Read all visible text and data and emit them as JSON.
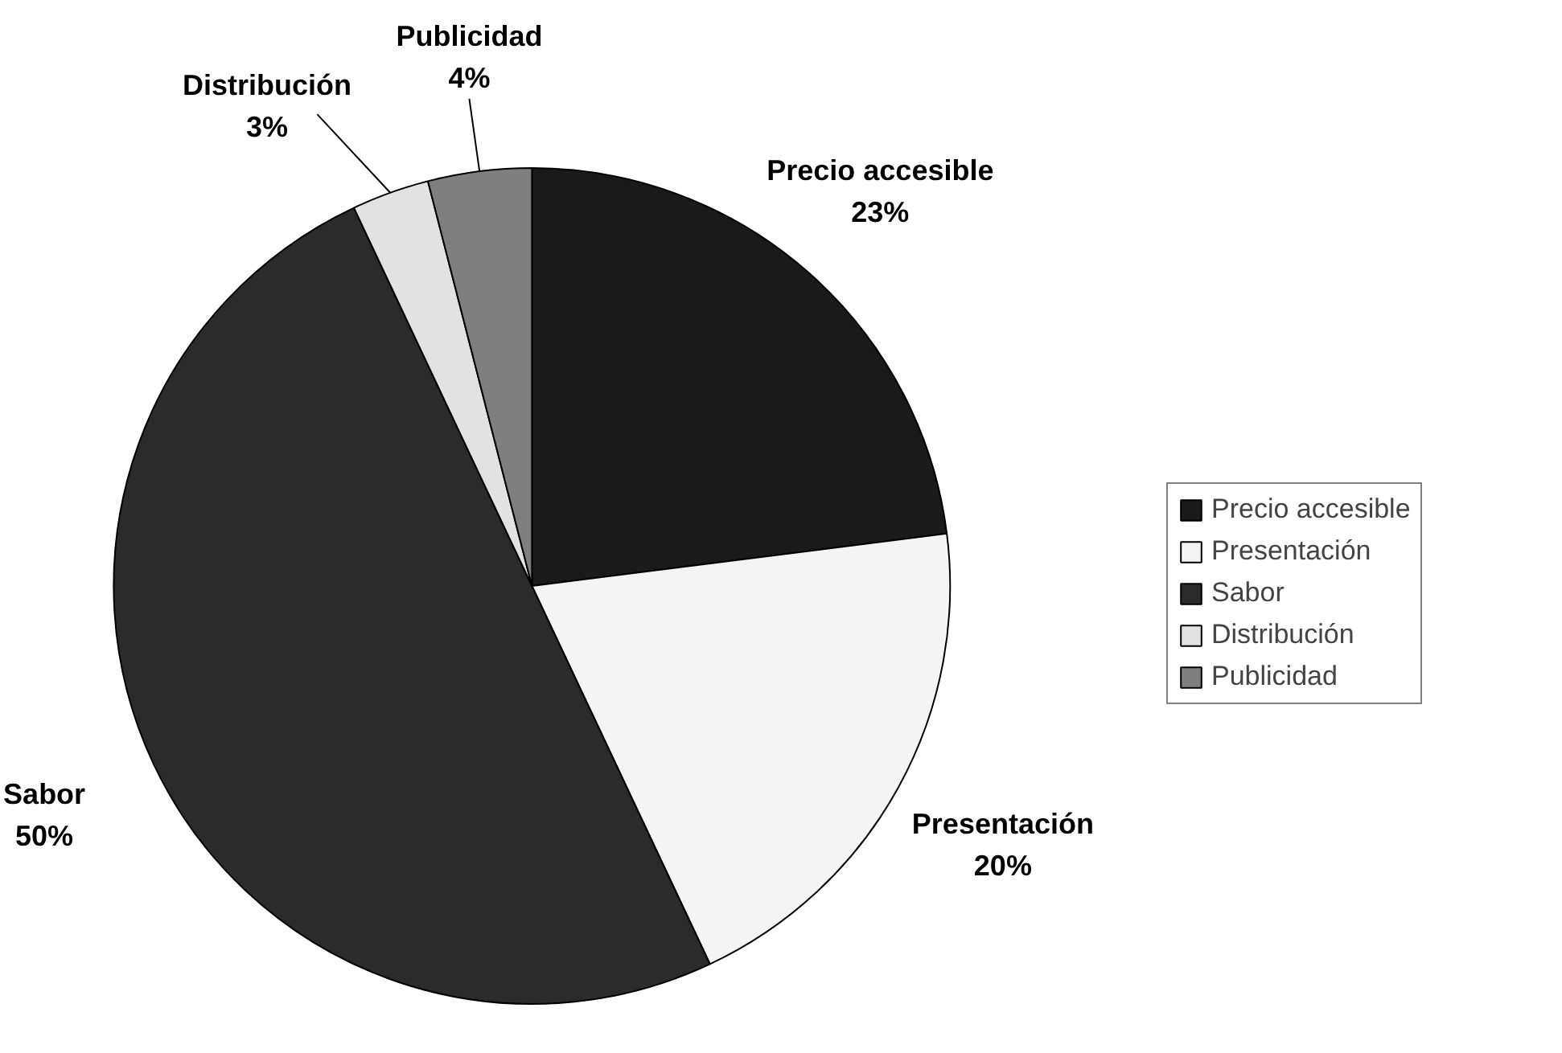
{
  "chart_data": {
    "type": "pie",
    "categories": [
      "Precio accesible",
      "Presentación",
      "Sabor",
      "Distribución",
      "Publicidad"
    ],
    "values": [
      23,
      20,
      50,
      3,
      4
    ],
    "value_labels": [
      "23%",
      "20%",
      "50%",
      "3%",
      "4%"
    ],
    "colors": [
      "#1a1a1a",
      "#f4f4f4",
      "#2b2b2b",
      "#e2e2e2",
      "#7f7f7f"
    ],
    "data_labels": true,
    "legend": "right"
  }
}
